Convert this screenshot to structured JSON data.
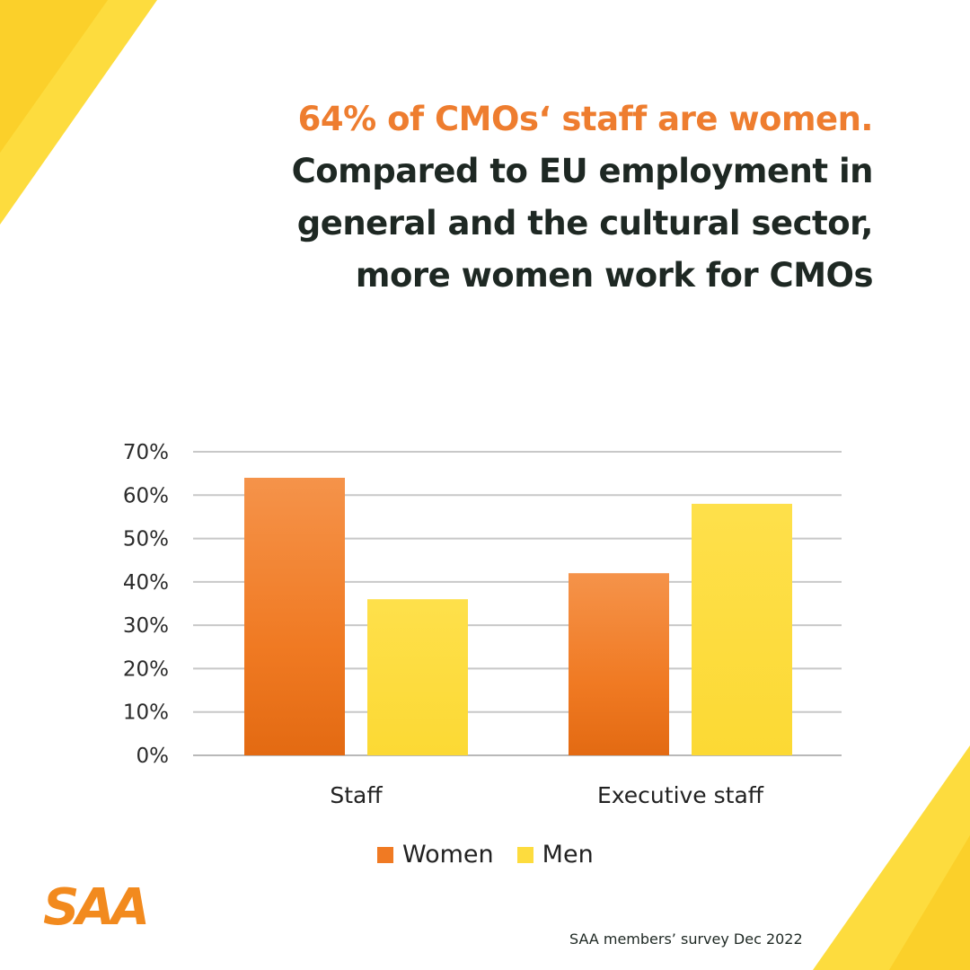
{
  "headline": {
    "line1": "64% of CMOs‘ staff are women.",
    "line2": "Compared to EU employment in",
    "line3": "general and the cultural sector,",
    "line4": "more women work for CMOs"
  },
  "chart_data": {
    "type": "bar",
    "categories": [
      "Staff",
      "Executive staff"
    ],
    "series": [
      {
        "name": "Women",
        "values": [
          64,
          42
        ],
        "color": "#F07A23"
      },
      {
        "name": "Men",
        "values": [
          36,
          58
        ],
        "color": "#FDDC3E"
      }
    ],
    "ylim": [
      0,
      70
    ],
    "yticks": [
      "0%",
      "10%",
      "20%",
      "30%",
      "40%",
      "50%",
      "60%",
      "70%"
    ],
    "grid": true,
    "legend": "bottom"
  },
  "logo": "SAA",
  "source": "SAA members’ survey Dec 2022",
  "colors": {
    "accent": "#EE7D2F",
    "dark": "#1E2823",
    "yellow": "#FDDC3E"
  }
}
